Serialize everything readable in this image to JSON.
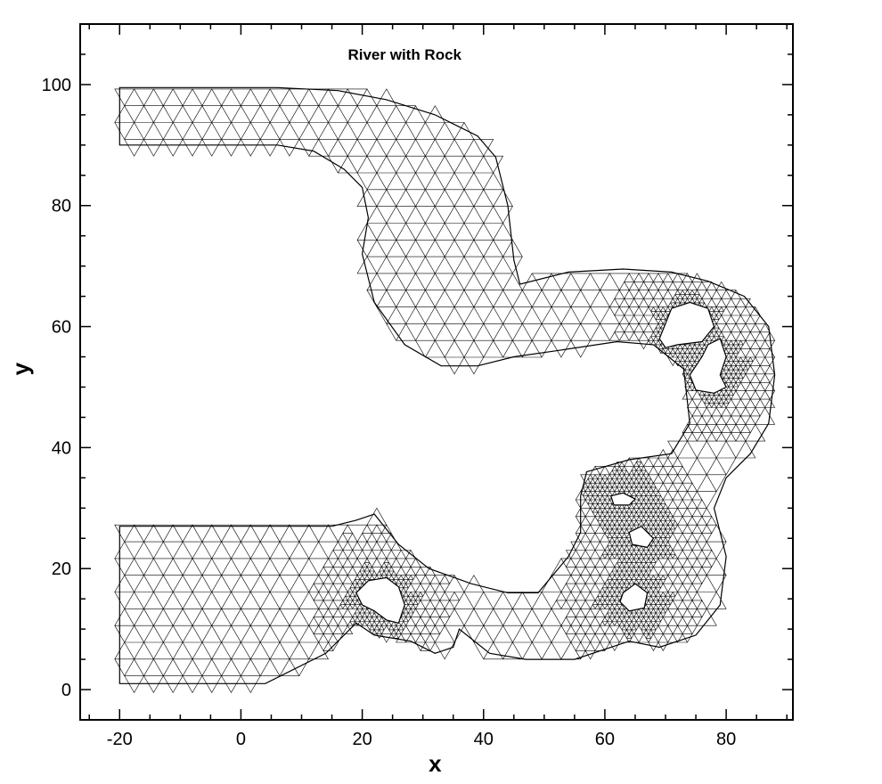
{
  "chart_data": {
    "type": "mesh",
    "title": "River with Rock",
    "xlabel": "x",
    "ylabel": "y",
    "xlim": [
      -26.5,
      91
    ],
    "ylim": [
      -5,
      110
    ],
    "x_ticks": [
      -20,
      0,
      20,
      40,
      60,
      80
    ],
    "y_ticks": [
      0,
      20,
      40,
      60,
      80,
      100
    ],
    "x_tick_labels": [
      "-20",
      "0",
      "20",
      "40",
      "60",
      "80"
    ],
    "y_tick_labels": [
      "0",
      "20",
      "40",
      "60",
      "80",
      "100"
    ],
    "minor_tick_step": 5,
    "grid": false,
    "mesh_element": "triangle",
    "mesh_color": "#000000",
    "domain_outline": [
      [
        -20,
        27
      ],
      [
        -20,
        1
      ],
      [
        4,
        1
      ],
      [
        14,
        6
      ],
      [
        19,
        11
      ],
      [
        22,
        9
      ],
      [
        28,
        8
      ],
      [
        32,
        6
      ],
      [
        35,
        7
      ],
      [
        36,
        10
      ],
      [
        41,
        6
      ],
      [
        47,
        5
      ],
      [
        55,
        5
      ],
      [
        64,
        8
      ],
      [
        69,
        7
      ],
      [
        75,
        9
      ],
      [
        79,
        14
      ],
      [
        80,
        22
      ],
      [
        78,
        30
      ],
      [
        80,
        35
      ],
      [
        84,
        39
      ],
      [
        87,
        44
      ],
      [
        88,
        52
      ],
      [
        87,
        60
      ],
      [
        83,
        65
      ],
      [
        77,
        67.5
      ],
      [
        71,
        69
      ],
      [
        63,
        69.5
      ],
      [
        54,
        69
      ],
      [
        46,
        67
      ],
      [
        45,
        71
      ],
      [
        44,
        80
      ],
      [
        42,
        88
      ],
      [
        39,
        91.5
      ],
      [
        32,
        95
      ],
      [
        24,
        97.5
      ],
      [
        16,
        99
      ],
      [
        6,
        99.5
      ],
      [
        -20,
        99.5
      ],
      [
        -20,
        90
      ],
      [
        6,
        90
      ],
      [
        12,
        89
      ],
      [
        17,
        86
      ],
      [
        20,
        83
      ],
      [
        21,
        78
      ],
      [
        20,
        72
      ],
      [
        22,
        64
      ],
      [
        27,
        57
      ],
      [
        33,
        53.5
      ],
      [
        39,
        53.5
      ],
      [
        45,
        55
      ],
      [
        52,
        56
      ],
      [
        62,
        57.5
      ],
      [
        68,
        57
      ],
      [
        73,
        53
      ],
      [
        74,
        44
      ],
      [
        71,
        39
      ],
      [
        64,
        38
      ],
      [
        57,
        36
      ],
      [
        56,
        32
      ],
      [
        56,
        26
      ],
      [
        54,
        22
      ],
      [
        49,
        16
      ],
      [
        44,
        16
      ],
      [
        38,
        17.5
      ],
      [
        31,
        20
      ],
      [
        26,
        24
      ],
      [
        22,
        29
      ],
      [
        19,
        28
      ],
      [
        15,
        27
      ]
    ],
    "rocks": [
      [
        [
          19,
          16
        ],
        [
          21,
          18
        ],
        [
          24,
          18.5
        ],
        [
          26,
          17
        ],
        [
          27,
          14
        ],
        [
          26,
          11
        ],
        [
          24,
          11.5
        ],
        [
          22,
          13
        ],
        [
          20,
          14
        ]
      ],
      [
        [
          69,
          58
        ],
        [
          71,
          63
        ],
        [
          74,
          64
        ],
        [
          77,
          63
        ],
        [
          78,
          60
        ],
        [
          76,
          57.5
        ],
        [
          72,
          57
        ],
        [
          70,
          56.5
        ]
      ],
      [
        [
          77,
          57
        ],
        [
          79,
          58
        ],
        [
          80,
          55
        ],
        [
          79,
          52
        ],
        [
          80,
          50
        ],
        [
          78,
          49
        ],
        [
          75,
          49.5
        ],
        [
          74,
          52
        ],
        [
          76,
          55
        ]
      ],
      [
        [
          61,
          32
        ],
        [
          63,
          32.5
        ],
        [
          65,
          31.5
        ],
        [
          64,
          30.5
        ],
        [
          61.5,
          30.5
        ]
      ],
      [
        [
          64,
          26
        ],
        [
          66,
          27
        ],
        [
          68,
          25
        ],
        [
          67,
          23.5
        ],
        [
          64.5,
          24
        ]
      ],
      [
        [
          63,
          16
        ],
        [
          65,
          17.5
        ],
        [
          67,
          16
        ],
        [
          66.5,
          13.5
        ],
        [
          64,
          13
        ],
        [
          62.5,
          14.5
        ]
      ]
    ]
  }
}
